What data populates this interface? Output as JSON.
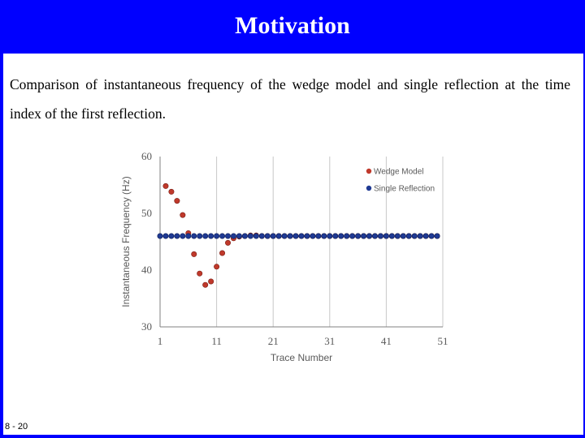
{
  "slide": {
    "title": "Motivation",
    "body": "Comparison of instantaneous frequency of the wedge model and single reflection at the time index of the first reflection.",
    "slide_number": "8 - 20"
  },
  "colors": {
    "background": "#0000ff",
    "wedge_series": "#c0392b",
    "single_series": "#1f3a93"
  },
  "chart_data": {
    "type": "scatter",
    "title": "",
    "xlabel": "Trace Number",
    "ylabel": "Instantaneous Frequency (Hz)",
    "xlim": [
      1,
      51
    ],
    "ylim": [
      30,
      60
    ],
    "xticks": [
      "1",
      "11",
      "21",
      "31",
      "41",
      "51"
    ],
    "yticks": [
      "30",
      "40",
      "50",
      "60"
    ],
    "grid": "vertical",
    "legend": "top-right",
    "series": [
      {
        "name": "Wedge Model",
        "color": "#c0392b",
        "x": [
          2,
          3,
          4,
          5,
          6,
          7,
          8,
          9,
          10,
          11,
          12,
          13,
          14,
          15,
          16,
          17,
          18,
          19,
          20,
          21,
          22,
          23,
          24,
          25,
          26,
          27,
          28,
          29,
          30,
          31,
          32,
          33,
          34,
          35,
          36,
          37,
          38,
          39,
          40,
          41,
          42,
          43,
          44,
          45,
          46,
          47,
          48,
          49,
          50
        ],
        "y": [
          54.8,
          53.8,
          52.2,
          49.7,
          46.5,
          42.8,
          39.4,
          37.4,
          38.0,
          40.6,
          43.0,
          44.8,
          45.6,
          45.9,
          46.0,
          46.1,
          46.1,
          46.0,
          46.0,
          46.0,
          46.0,
          46.0,
          46.0,
          46.0,
          46.0,
          46.0,
          46.0,
          46.0,
          46.0,
          46.0,
          46.0,
          46.0,
          46.0,
          46.0,
          46.0,
          46.0,
          46.0,
          46.0,
          46.0,
          46.0,
          46.0,
          46.0,
          46.0,
          46.0,
          46.0,
          46.0,
          46.0,
          46.0,
          46.0
        ]
      },
      {
        "name": "Single Reflection",
        "color": "#1f3a93",
        "x": [
          1,
          2,
          3,
          4,
          5,
          6,
          7,
          8,
          9,
          10,
          11,
          12,
          13,
          14,
          15,
          16,
          17,
          18,
          19,
          20,
          21,
          22,
          23,
          24,
          25,
          26,
          27,
          28,
          29,
          30,
          31,
          32,
          33,
          34,
          35,
          36,
          37,
          38,
          39,
          40,
          41,
          42,
          43,
          44,
          45,
          46,
          47,
          48,
          49,
          50
        ],
        "y": [
          46,
          46,
          46,
          46,
          46,
          46,
          46,
          46,
          46,
          46,
          46,
          46,
          46,
          46,
          46,
          46,
          46,
          46,
          46,
          46,
          46,
          46,
          46,
          46,
          46,
          46,
          46,
          46,
          46,
          46,
          46,
          46,
          46,
          46,
          46,
          46,
          46,
          46,
          46,
          46,
          46,
          46,
          46,
          46,
          46,
          46,
          46,
          46,
          46,
          46
        ]
      }
    ]
  }
}
